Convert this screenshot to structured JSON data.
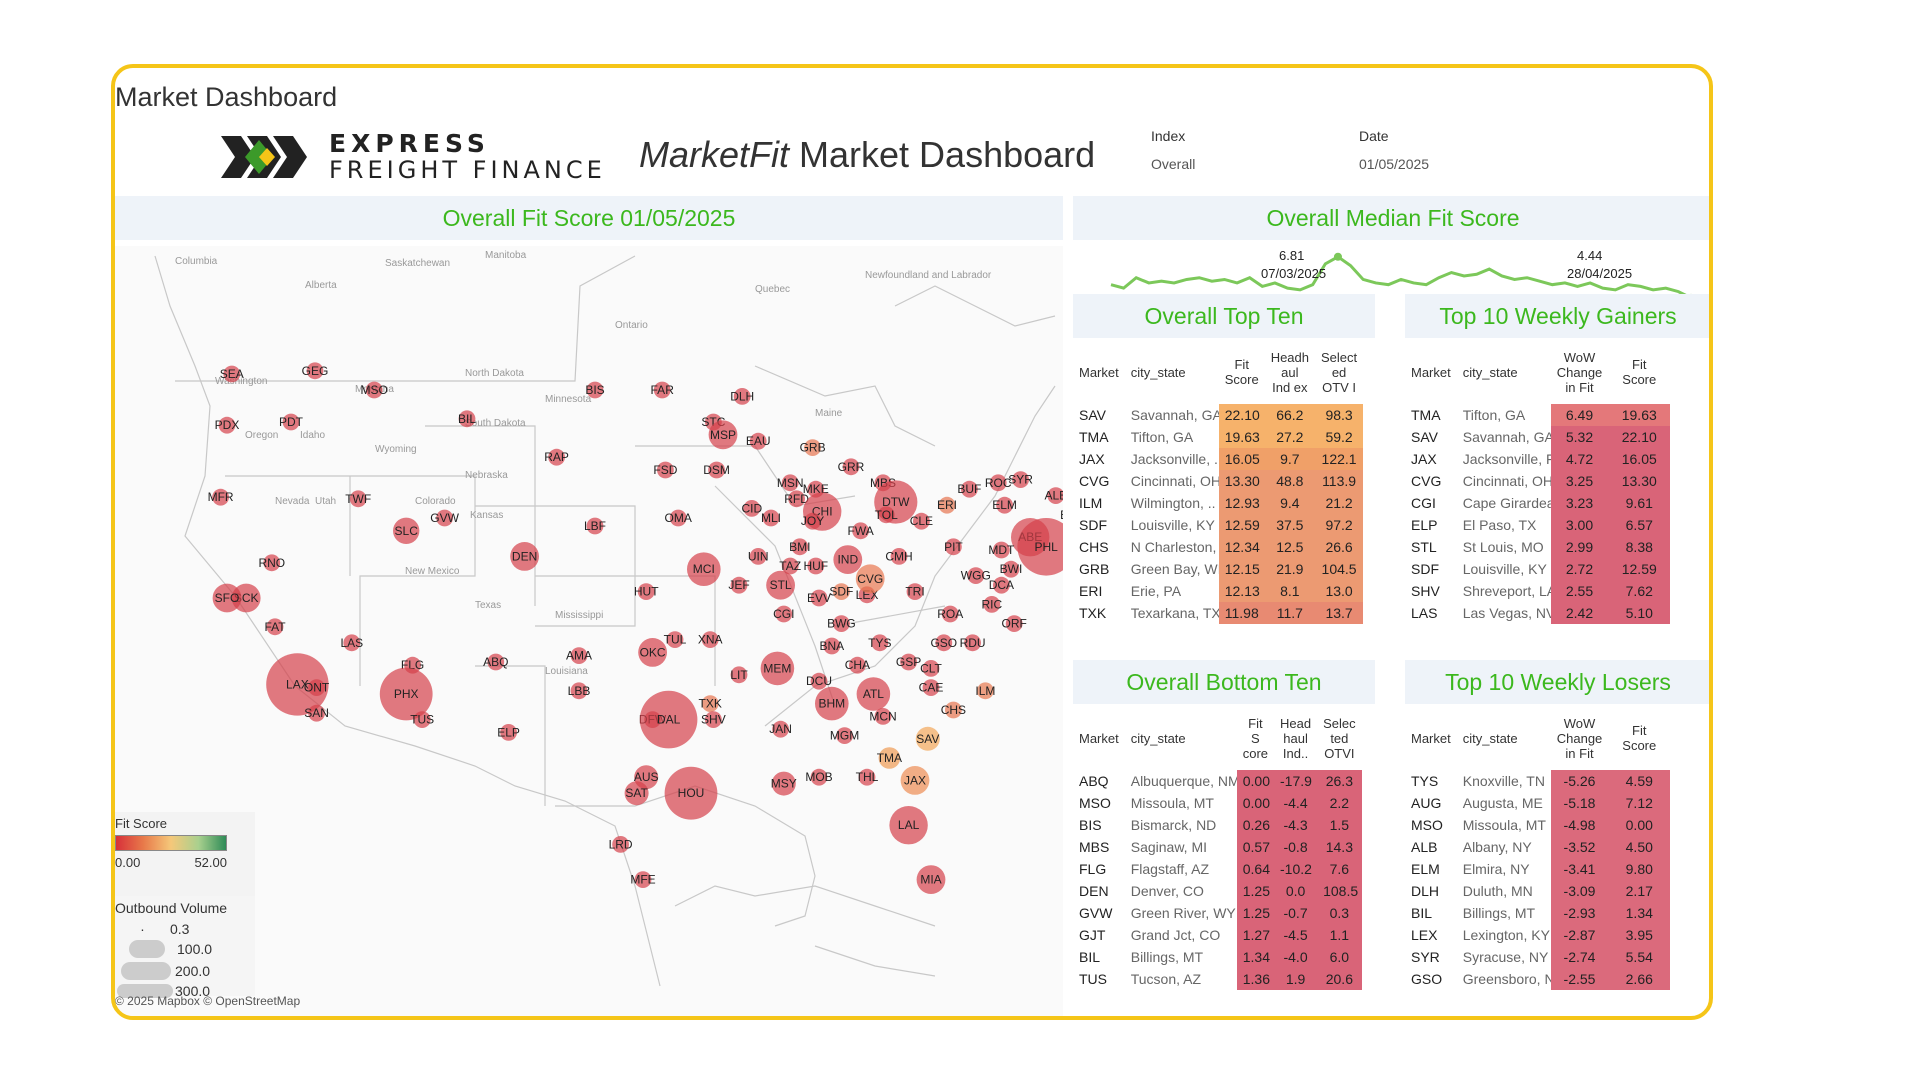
{
  "page": {
    "title": "Market Dashboard"
  },
  "logo": {
    "line1": "EXPRESS",
    "line2": "FREIGHT FINANCE"
  },
  "dashboard": {
    "title_italic": "MarketFit",
    "title_rest": "Market Dashboard"
  },
  "filters": {
    "index_label": "Index",
    "index_value": "Overall",
    "date_label": "Date",
    "date_value": "01/05/2025"
  },
  "map": {
    "title": "Overall Fit Score 01/05/2025",
    "attribution": "© 2025 Mapbox © OpenStreetMap",
    "region_labels": [
      "Columbia",
      "Alberta",
      "Saskatchewan",
      "Manitoba",
      "Ontario",
      "Quebec",
      "Newfoundland and Labrador",
      "Washington",
      "Montana",
      "North Dakota",
      "South Dakota",
      "Wyoming",
      "Idaho",
      "Oregon",
      "Nevada",
      "Utah",
      "Colorado",
      "Nebraska",
      "Kansas",
      "Texas",
      "New Mexico",
      "Mississippi",
      "Louisiana",
      "Maine",
      "Minnesota"
    ],
    "markets": [
      "SEA",
      "GEG",
      "MSO",
      "PDX",
      "PDT",
      "BIL",
      "BIS",
      "FAR",
      "DLH",
      "STC",
      "MSP",
      "EAU",
      "GRB",
      "MFR",
      "TWF",
      "GVW",
      "RAP",
      "FSD",
      "SLC",
      "DEN",
      "OMA",
      "DSM",
      "LBF",
      "CID",
      "MSN",
      "MKE",
      "GRR",
      "MBS",
      "DTW",
      "BUF",
      "ROC",
      "SYR",
      "ALB",
      "BDL",
      "BOS",
      "AUG",
      "BNH",
      "ELM",
      "ERI",
      "TOL",
      "CLE",
      "FWA",
      "RFD",
      "CHI",
      "MLI",
      "JOY",
      "RNO",
      "SCK",
      "SFO",
      "FAT",
      "LAS",
      "HUT",
      "MCI",
      "UIN",
      "BMI",
      "TAZ",
      "HUF",
      "IND",
      "CMH",
      "PIT",
      "ABE",
      "PHL",
      "MDT",
      "BWI",
      "DCA",
      "RIC",
      "ORF",
      "WGG",
      "ROA",
      "JEF",
      "STL",
      "EVV",
      "SDF",
      "LEX",
      "CVG",
      "TRI",
      "CGI",
      "FLG",
      "PHX",
      "TUS",
      "LAX",
      "ONT",
      "SAN",
      "ABQ",
      "AMA",
      "LBB",
      "ELP",
      "OKC",
      "TUL",
      "XNA",
      "LIT",
      "MEM",
      "BNA",
      "BWG",
      "TYS",
      "CHA",
      "GSO",
      "GSP",
      "CLT",
      "CAE",
      "RDU",
      "ILM",
      "DCU",
      "BHM",
      "ATL",
      "MCN",
      "MGM",
      "SAV",
      "TMA",
      "JAX",
      "THL",
      "TXK",
      "SHV",
      "DFW",
      "DAL",
      "AUS",
      "SAT",
      "HOU",
      "LRD",
      "MFE",
      "JAN",
      "MSY",
      "MOB",
      "LAL",
      "MIA",
      "CHS"
    ]
  },
  "legend": {
    "fit_title": "Fit Score",
    "fit_min": "0.00",
    "fit_max": "52.00",
    "fit_colors": [
      "#d7303a",
      "#e87a4a",
      "#f5c87a",
      "#a9d08e",
      "#2e8b57"
    ],
    "vol_title": "Outbound Volume",
    "vol_values": [
      "0.3",
      "100.0",
      "200.0",
      "300.0"
    ]
  },
  "median": {
    "title": "Overall Median Fit Score",
    "peak_value": "6.81",
    "peak_date": "07/03/2025",
    "last_value": "4.44",
    "last_date": "28/04/2025",
    "line_color": "#7cc85a",
    "series": [
      5.2,
      5.0,
      5.6,
      5.3,
      5.4,
      5.3,
      5.5,
      5.6,
      5.4,
      5.5,
      5.3,
      5.6,
      5.1,
      5.3,
      5.0,
      4.9,
      5.2,
      6.4,
      6.81,
      6.3,
      5.5,
      5.3,
      5.2,
      5.5,
      5.3,
      5.2,
      5.6,
      5.9,
      5.7,
      5.8,
      6.1,
      5.7,
      5.5,
      5.6,
      5.4,
      5.2,
      5.3,
      5.1,
      5.3,
      5.0,
      4.9,
      5.2,
      5.1,
      4.9,
      5.0,
      4.8,
      4.44
    ]
  },
  "top_ten": {
    "title": "Overall Top Ten",
    "headers": [
      "Market",
      "city_state",
      "Fit Score",
      "Headh aul Ind ex",
      "Select ed OTV I"
    ],
    "rows": [
      [
        "SAV",
        "Savannah, GA",
        "22.10",
        "66.2",
        "98.3"
      ],
      [
        "TMA",
        "Tifton, GA",
        "19.63",
        "27.2",
        "59.2"
      ],
      [
        "JAX",
        "Jacksonville, ..",
        "16.05",
        "9.7",
        "122.1"
      ],
      [
        "CVG",
        "Cincinnati, OH",
        "13.30",
        "48.8",
        "113.9"
      ],
      [
        "ILM",
        "Wilmington, ..",
        "12.93",
        "9.4",
        "21.2"
      ],
      [
        "SDF",
        "Louisville, KY",
        "12.59",
        "37.5",
        "97.2"
      ],
      [
        "CHS",
        "N Charleston, ..",
        "12.34",
        "12.5",
        "26.6"
      ],
      [
        "GRB",
        "Green Bay, WI",
        "12.15",
        "21.9",
        "104.5"
      ],
      [
        "ERI",
        "Erie, PA",
        "12.13",
        "8.1",
        "13.0"
      ],
      [
        "TXK",
        "Texarkana, TX",
        "11.98",
        "11.7",
        "13.7"
      ]
    ]
  },
  "gainers": {
    "title": "Top 10 Weekly Gainers",
    "headers": [
      "Market",
      "city_state",
      "WoW Change in Fit",
      "Fit Score"
    ],
    "rows": [
      [
        "TMA",
        "Tifton, GA",
        "6.49",
        "19.63"
      ],
      [
        "SAV",
        "Savannah, GA",
        "5.32",
        "22.10"
      ],
      [
        "JAX",
        "Jacksonville, FL",
        "4.72",
        "16.05"
      ],
      [
        "CVG",
        "Cincinnati, OH",
        "3.25",
        "13.30"
      ],
      [
        "CGI",
        "Cape Girardeau..",
        "3.23",
        "9.61"
      ],
      [
        "ELP",
        "El Paso, TX",
        "3.00",
        "6.57"
      ],
      [
        "STL",
        "St Louis, MO",
        "2.99",
        "8.38"
      ],
      [
        "SDF",
        "Louisville, KY",
        "2.72",
        "12.59"
      ],
      [
        "SHV",
        "Shreveport, LA",
        "2.55",
        "7.62"
      ],
      [
        "LAS",
        "Las Vegas, NV",
        "2.42",
        "5.10"
      ]
    ]
  },
  "bottom_ten": {
    "title": "Overall Bottom Ten",
    "headers": [
      "Market",
      "city_state",
      "Fit S core",
      "Head haul Ind..",
      "Selec ted OTVI"
    ],
    "rows": [
      [
        "ABQ",
        "Albuquerque, NM",
        "0.00",
        "-17.9",
        "26.3"
      ],
      [
        "MSO",
        "Missoula, MT",
        "0.00",
        "-4.4",
        "2.2"
      ],
      [
        "BIS",
        "Bismarck, ND",
        "0.26",
        "-4.3",
        "1.5"
      ],
      [
        "MBS",
        "Saginaw, MI",
        "0.57",
        "-0.8",
        "14.3"
      ],
      [
        "FLG",
        "Flagstaff, AZ",
        "0.64",
        "-10.2",
        "7.6"
      ],
      [
        "DEN",
        "Denver, CO",
        "1.25",
        "0.0",
        "108.5"
      ],
      [
        "GVW",
        "Green River, WY",
        "1.25",
        "-0.7",
        "0.3"
      ],
      [
        "GJT",
        "Grand Jct, CO",
        "1.27",
        "-4.5",
        "1.1"
      ],
      [
        "BIL",
        "Billings, MT",
        "1.34",
        "-4.0",
        "6.0"
      ],
      [
        "TUS",
        "Tucson, AZ",
        "1.36",
        "1.9",
        "20.6"
      ]
    ]
  },
  "losers": {
    "title": "Top 10 Weekly Losers",
    "headers": [
      "Market",
      "city_state",
      "WoW Change in Fit",
      "Fit Score"
    ],
    "rows": [
      [
        "TYS",
        "Knoxville, TN",
        "-5.26",
        "4.59"
      ],
      [
        "AUG",
        "Augusta, ME",
        "-5.18",
        "7.12"
      ],
      [
        "MSO",
        "Missoula, MT",
        "-4.98",
        "0.00"
      ],
      [
        "ALB",
        "Albany, NY",
        "-3.52",
        "4.50"
      ],
      [
        "ELM",
        "Elmira, NY",
        "-3.41",
        "9.80"
      ],
      [
        "DLH",
        "Duluth, MN",
        "-3.09",
        "2.17"
      ],
      [
        "BIL",
        "Billings, MT",
        "-2.93",
        "1.34"
      ],
      [
        "LEX",
        "Lexington, KY",
        "-2.87",
        "3.95"
      ],
      [
        "SYR",
        "Syracuse, NY",
        "-2.74",
        "5.54"
      ],
      [
        "GSO",
        "Greensboro, NC",
        "-2.55",
        "2.66"
      ]
    ]
  }
}
